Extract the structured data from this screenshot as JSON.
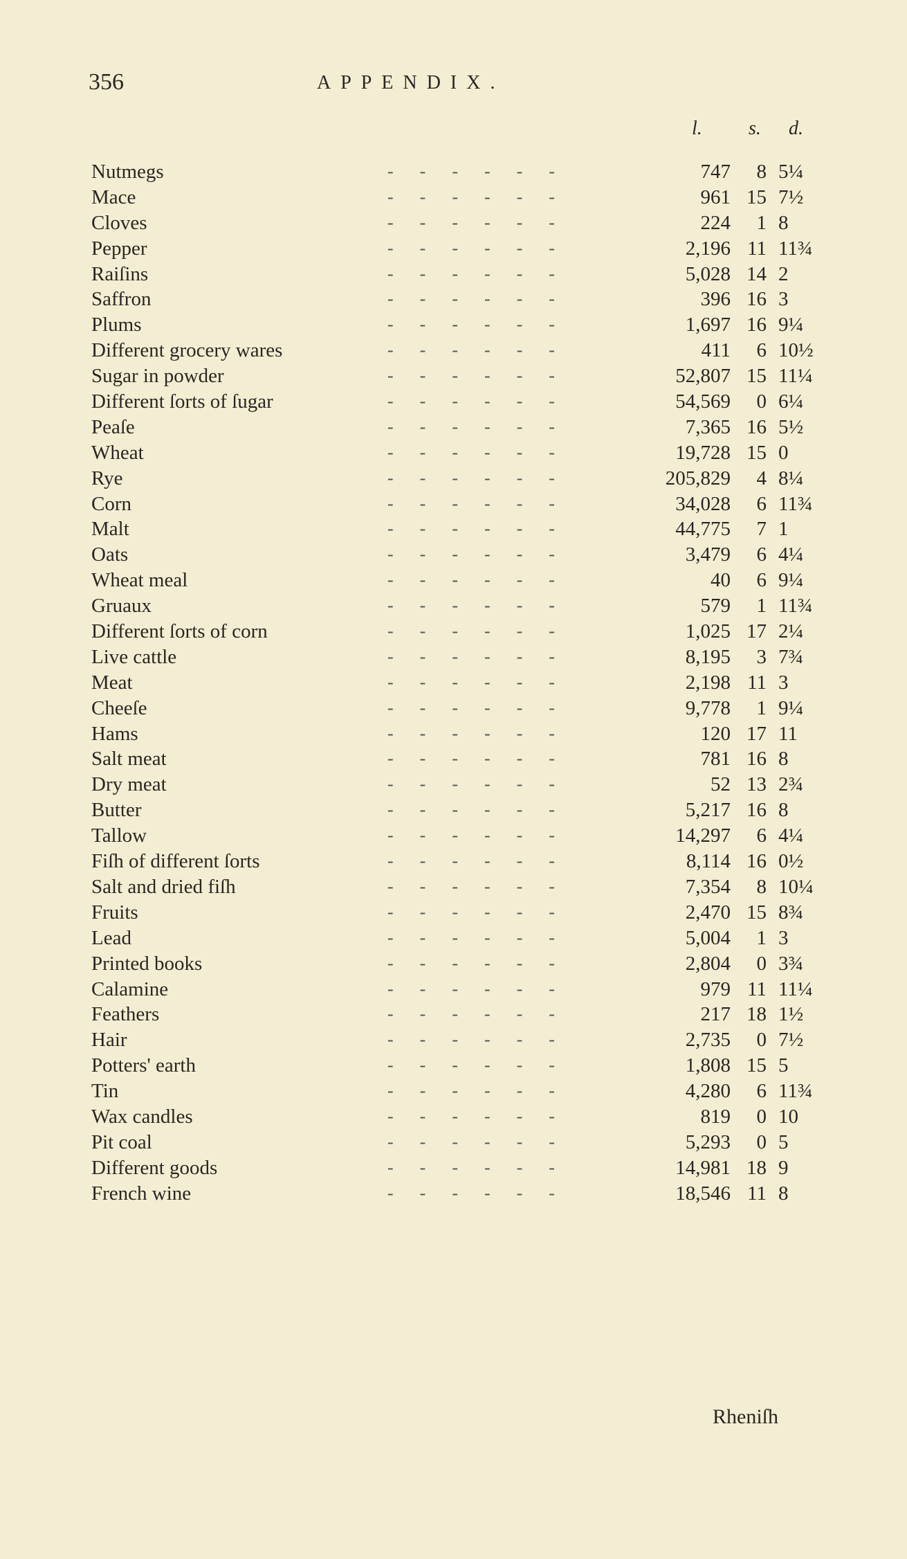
{
  "header": {
    "page_number": "356",
    "title": "APPENDIX."
  },
  "columns": {
    "pounds": "l.",
    "shillings": "s.",
    "pence": "d."
  },
  "rows": [
    {
      "name": "Nutmegs",
      "l": "747",
      "s": "8",
      "d": "5¼"
    },
    {
      "name": "Mace",
      "l": "961",
      "s": "15",
      "d": "7½"
    },
    {
      "name": "Cloves",
      "l": "224",
      "s": "1",
      "d": "8"
    },
    {
      "name": "Pepper",
      "l": "2,196",
      "s": "11",
      "d": "11¾"
    },
    {
      "name": "Raiſins",
      "l": "5,028",
      "s": "14",
      "d": "2"
    },
    {
      "name": "Saffron",
      "l": "396",
      "s": "16",
      "d": "3"
    },
    {
      "name": "Plums",
      "l": "1,697",
      "s": "16",
      "d": "9¼"
    },
    {
      "name": "Different grocery wares",
      "l": "411",
      "s": "6",
      "d": "10½"
    },
    {
      "name": "Sugar in powder",
      "l": "52,807",
      "s": "15",
      "d": "11¼"
    },
    {
      "name": "Different ſorts of ſugar",
      "l": "54,569",
      "s": "0",
      "d": "6¼"
    },
    {
      "name": "Peaſe",
      "l": "7,365",
      "s": "16",
      "d": "5½"
    },
    {
      "name": "Wheat",
      "l": "19,728",
      "s": "15",
      "d": "0"
    },
    {
      "name": "Rye",
      "l": "205,829",
      "s": "4",
      "d": "8¼"
    },
    {
      "name": "Corn",
      "l": "34,028",
      "s": "6",
      "d": "11¾"
    },
    {
      "name": "Malt",
      "l": "44,775",
      "s": "7",
      "d": "1"
    },
    {
      "name": "Oats",
      "l": "3,479",
      "s": "6",
      "d": "4¼"
    },
    {
      "name": "Wheat meal",
      "l": "40",
      "s": "6",
      "d": "9¼"
    },
    {
      "name": "Gruaux",
      "l": "579",
      "s": "1",
      "d": "11¾"
    },
    {
      "name": "Different ſorts of corn",
      "l": "1,025",
      "s": "17",
      "d": "2¼"
    },
    {
      "name": "Live cattle",
      "l": "8,195",
      "s": "3",
      "d": "7¾"
    },
    {
      "name": "Meat",
      "l": "2,198",
      "s": "11",
      "d": "3"
    },
    {
      "name": "Cheeſe",
      "l": "9,778",
      "s": "1",
      "d": "9¼"
    },
    {
      "name": "Hams",
      "l": "120",
      "s": "17",
      "d": "11"
    },
    {
      "name": "Salt meat",
      "l": "781",
      "s": "16",
      "d": "8"
    },
    {
      "name": "Dry meat",
      "l": "52",
      "s": "13",
      "d": "2¾"
    },
    {
      "name": "Butter",
      "l": "5,217",
      "s": "16",
      "d": "8"
    },
    {
      "name": "Tallow",
      "l": "14,297",
      "s": "6",
      "d": "4¼"
    },
    {
      "name": "Fiſh of different ſorts",
      "l": "8,114",
      "s": "16",
      "d": "0½"
    },
    {
      "name": "Salt and dried fiſh",
      "l": "7,354",
      "s": "8",
      "d": "10¼"
    },
    {
      "name": "Fruits",
      "l": "2,470",
      "s": "15",
      "d": "8¾"
    },
    {
      "name": "Lead",
      "l": "5,004",
      "s": "1",
      "d": "3"
    },
    {
      "name": "Printed books",
      "l": "2,804",
      "s": "0",
      "d": "3¾"
    },
    {
      "name": "Calamine",
      "l": "979",
      "s": "11",
      "d": "11¼"
    },
    {
      "name": "Feathers",
      "l": "217",
      "s": "18",
      "d": "1½"
    },
    {
      "name": "Hair",
      "l": "2,735",
      "s": "0",
      "d": "7½"
    },
    {
      "name": "Potters' earth",
      "l": "1,808",
      "s": "15",
      "d": "5"
    },
    {
      "name": "Tin",
      "l": "4,280",
      "s": "6",
      "d": "11¾"
    },
    {
      "name": "Wax candles",
      "l": "819",
      "s": "0",
      "d": "10"
    },
    {
      "name": "Pit coal",
      "l": "5,293",
      "s": "0",
      "d": "5"
    },
    {
      "name": "Different goods",
      "l": "14,981",
      "s": "18",
      "d": "9"
    },
    {
      "name": "French wine",
      "l": "18,546",
      "s": "11",
      "d": "8"
    }
  ],
  "catchword": "Rheniſh"
}
